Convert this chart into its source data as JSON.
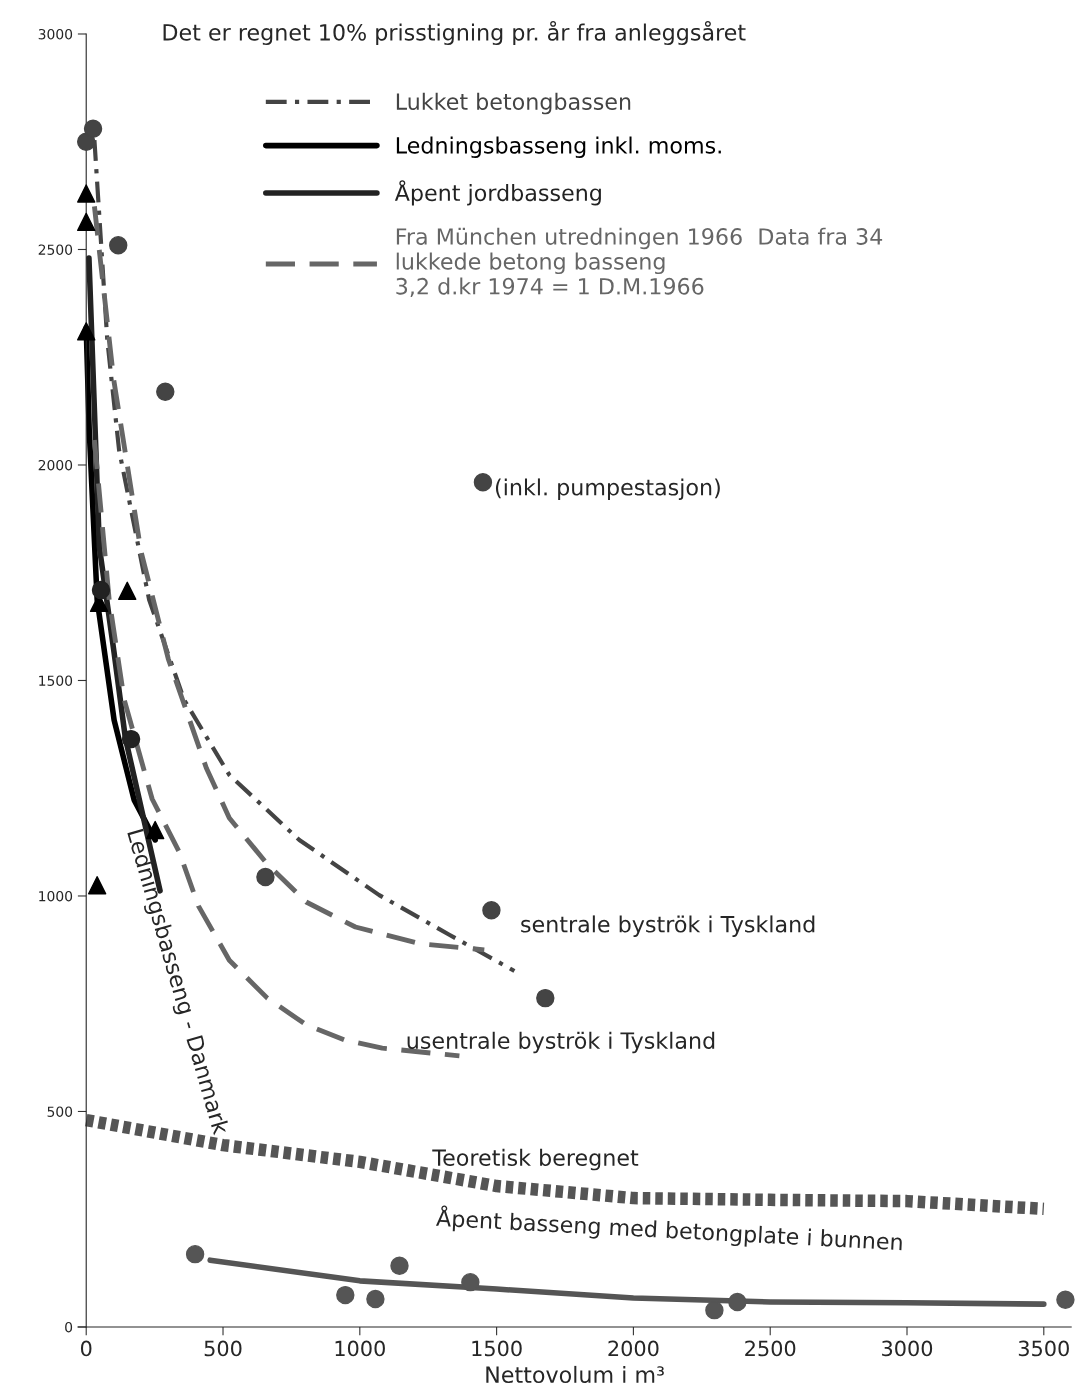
{
  "chart_data": {
    "type": "line",
    "title": "Det er regnet 10% prisstigning pr. år fra anleggsåret",
    "xlabel": "Nettovolum i m³",
    "xlim": [
      -30,
      3600
    ],
    "ylim": [
      0,
      3000
    ],
    "xticks": [
      0,
      500,
      1000,
      1500,
      2000,
      2500,
      3000,
      3500
    ],
    "yticks": [
      0,
      500,
      1000,
      1500,
      2000,
      2500,
      3000
    ],
    "grid": false,
    "legend": "top",
    "marker": "none",
    "series": [
      {
        "name": "Lukket betongbassen",
        "line_style": "dashdot",
        "color": "#444444",
        "x": [
          30,
          77,
          120,
          230,
          358,
          523,
          779,
          1071,
          1327,
          1565
        ],
        "values": [
          2754,
          2290,
          2035,
          1687,
          1455,
          1281,
          1130,
          1002,
          910,
          826
        ]
      },
      {
        "type": "scatter",
        "marker": "circle",
        "color": "#444444",
        "x": [
          0,
          25,
          117,
          289,
          1450,
          655,
          1481,
          1678
        ],
        "values": [
          2750,
          2780,
          2510,
          2170,
          1960,
          1044,
          967,
          763
        ]
      },
      {
        "name": "Ledningsbasseng inkl. moms.",
        "line_style": "solid",
        "color": "#000000",
        "x": [
          0,
          11,
          40,
          102,
          175,
          252
        ],
        "values": [
          2318,
          2081,
          1687,
          1408,
          1223,
          1130
        ]
      },
      {
        "type": "scatter",
        "marker": "triangle",
        "color": "#000000",
        "x": [
          0,
          0,
          0,
          40,
          47,
          150,
          252
        ],
        "values": [
          2630,
          2564,
          2310,
          1025,
          1680,
          1708,
          1153
        ]
      },
      {
        "name": "Åpent jordbasseng",
        "line_style": "solid",
        "color": "#222222",
        "x": [
          10,
          48,
          102,
          143,
          216,
          270
        ],
        "values": [
          2480,
          1810,
          1564,
          1367,
          1162,
          1012
        ]
      },
      {
        "type": "scatter",
        "marker": "circle",
        "color": "#222222",
        "x": [
          54,
          164
        ],
        "values": [
          1710,
          1364
        ]
      },
      {
        "name": "Fra München utredningen 1966  Data fra 34\nlukkede betong basseng\n3,2 d.kr 1974 = 1 D.M.1966",
        "line_style": "dashed",
        "color": "#666666",
        "x": [
          30,
          100,
          200,
          300,
          439,
          523,
          662,
          804,
          984,
          1222,
          1455
        ],
        "values": [
          2600,
          2200,
          1800,
          1550,
          1297,
          1181,
          1074,
          986,
          928,
          889,
          875
        ]
      },
      {
        "line_style": "dashed",
        "color": "#666666",
        "x": [
          30,
          84,
          139,
          241,
          340,
          410,
          523,
          662,
          804,
          943,
          1082,
          1364
        ],
        "values": [
          2058,
          1687,
          1455,
          1225,
          1102,
          977,
          851,
          763,
          701,
          666,
          647,
          629
        ]
      },
      {
        "line_style": "dotted",
        "color": "#555555",
        "x": [
          0,
          500,
          1000,
          1500,
          2000,
          2500,
          3000,
          3500
        ],
        "values": [
          480,
          422,
          383,
          327,
          299,
          295,
          292,
          274
        ]
      },
      {
        "line_style": "solid",
        "color": "#555555",
        "x": [
          453,
          1000,
          1500,
          2000,
          2500,
          3000,
          3500
        ],
        "values": [
          155,
          107,
          88,
          67,
          58,
          56,
          53
        ]
      },
      {
        "type": "scatter",
        "marker": "circle",
        "color": "#555555",
        "x": [
          398,
          947,
          1057,
          1145,
          1404,
          2296,
          2380,
          3579
        ],
        "values": [
          169,
          74,
          65,
          142,
          104,
          39,
          58,
          63
        ]
      }
    ],
    "annotations": [
      {
        "text": "(inkl. pumpestasjon)",
        "x": 1450,
        "y": 1960
      },
      "sentrale byströk i Tyskland",
      "usentrale byströk i Tyskland",
      "Ledningsbasseng - Danmark",
      {
        "text": "Teoretisk beregnet",
        "x": 1265,
        "y": 369
      },
      "Åpent basseng med betongplate i bunnen"
    ]
  }
}
